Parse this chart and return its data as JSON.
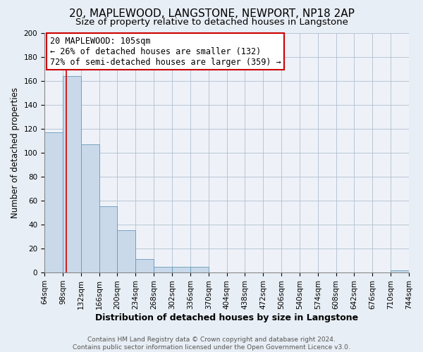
{
  "title": "20, MAPLEWOOD, LANGSTONE, NEWPORT, NP18 2AP",
  "subtitle": "Size of property relative to detached houses in Langstone",
  "xlabel": "Distribution of detached houses by size in Langstone",
  "ylabel": "Number of detached properties",
  "bar_edges": [
    64,
    98,
    132,
    166,
    200,
    234,
    268,
    302,
    336,
    370,
    404,
    438,
    472,
    506,
    540,
    574,
    608,
    642,
    676,
    710,
    744
  ],
  "bar_heights": [
    117,
    164,
    107,
    55,
    35,
    11,
    5,
    5,
    5,
    0,
    0,
    0,
    0,
    0,
    0,
    0,
    0,
    0,
    0,
    2
  ],
  "bar_color": "#c9d9ea",
  "bar_edge_color": "#6699bb",
  "vline_x": 105,
  "vline_color": "#cc0000",
  "annotation_line1": "20 MAPLEWOOD: 105sqm",
  "annotation_line2": "← 26% of detached houses are smaller (132)",
  "annotation_line3": "72% of semi-detached houses are larger (359) →",
  "ylim": [
    0,
    200
  ],
  "yticks": [
    0,
    20,
    40,
    60,
    80,
    100,
    120,
    140,
    160,
    180,
    200
  ],
  "tick_labels": [
    "64sqm",
    "98sqm",
    "132sqm",
    "166sqm",
    "200sqm",
    "234sqm",
    "268sqm",
    "302sqm",
    "336sqm",
    "370sqm",
    "404sqm",
    "438sqm",
    "472sqm",
    "506sqm",
    "540sqm",
    "574sqm",
    "608sqm",
    "642sqm",
    "676sqm",
    "710sqm",
    "744sqm"
  ],
  "footer_line1": "Contains HM Land Registry data © Crown copyright and database right 2024.",
  "footer_line2": "Contains public sector information licensed under the Open Government Licence v3.0.",
  "background_color": "#e8eef5",
  "plot_bg_color": "#eef2f8",
  "grid_color": "#b0bece",
  "title_fontsize": 11,
  "subtitle_fontsize": 9.5,
  "xlabel_fontsize": 9,
  "ylabel_fontsize": 8.5,
  "tick_fontsize": 7.5,
  "annotation_fontsize": 8.5,
  "footer_fontsize": 6.5
}
